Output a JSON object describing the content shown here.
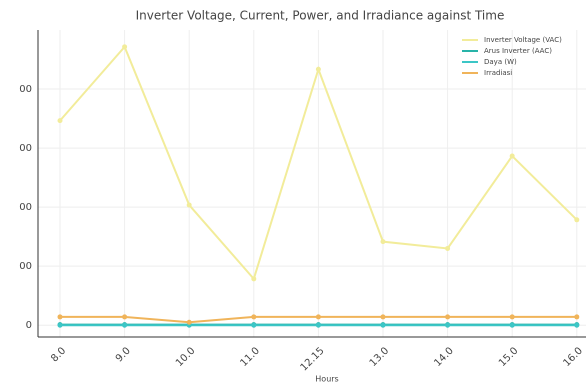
{
  "chart_data": {
    "type": "line",
    "title": "Inverter Voltage, Current, Power, and Irradiance against Time",
    "x_label": "Hours",
    "categories": [
      "8.0",
      "9.0",
      "10.0",
      "11.0",
      "12.15",
      "13.0",
      "14.0",
      "15.0",
      "16.0"
    ],
    "series": [
      {
        "name": "Inverter Voltage (VAC)",
        "color": "#f2ec9a",
        "values": [
          693,
          943,
          407,
          157,
          867,
          283,
          260,
          573,
          357
        ]
      },
      {
        "name": "Arus Inverter (AAC)",
        "color": "#27b3a8",
        "values": [
          2,
          2,
          2,
          2,
          2,
          2,
          2,
          2,
          2
        ]
      },
      {
        "name": "Daya (W)",
        "color": "#3cc6c6",
        "values": [
          0,
          0,
          0,
          0,
          0,
          0,
          0,
          0,
          0
        ]
      },
      {
        "name": "Irradiasi",
        "color": "#f0b45a",
        "values": [
          28,
          28,
          10,
          28,
          28,
          28,
          28,
          28,
          28
        ]
      }
    ],
    "ylim": [
      -40,
      1000
    ],
    "yticks": [
      0,
      {
        "value": 200,
        "label": "00"
      },
      {
        "value": 400,
        "label": "00"
      },
      {
        "value": 600,
        "label": "00"
      },
      {
        "value": 800,
        "label": "00"
      }
    ],
    "grid": true,
    "legend": "upper right"
  }
}
